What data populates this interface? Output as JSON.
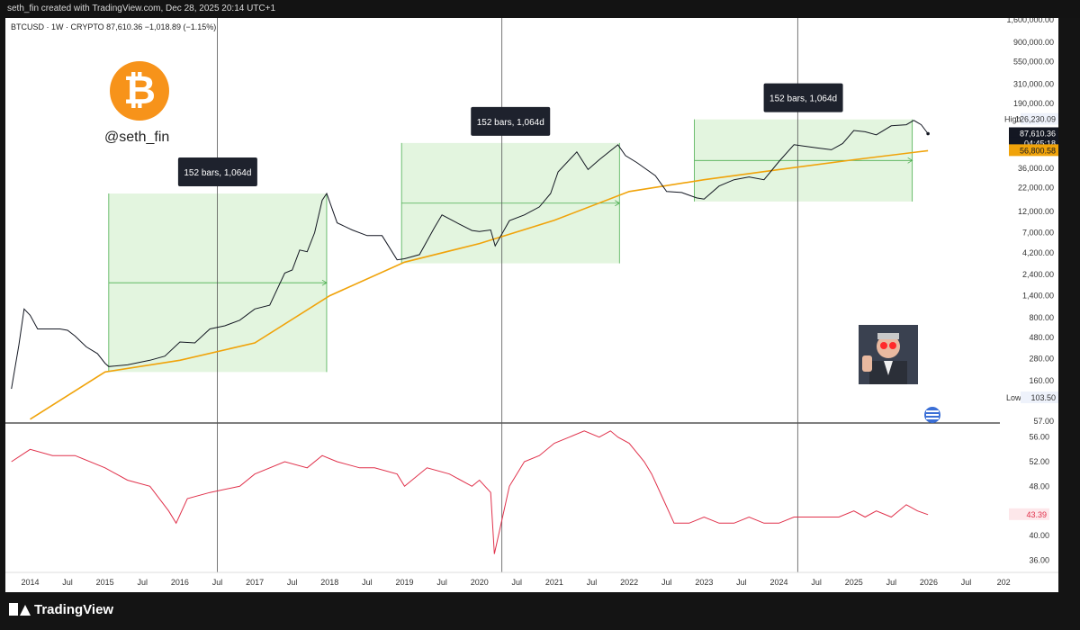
{
  "header": {
    "text": "seth_fin created with TradingView.com, Dec 28, 2025 20:14 UTC+1"
  },
  "legend": {
    "symbol": "BTCUSD · 1W · CRYPTO",
    "price": "87,610.36",
    "change": "−1,018.89 (−1.15%)"
  },
  "logo": {
    "handle": "@seth_fin",
    "symbol": "₿"
  },
  "branding": {
    "name": "TradingView"
  },
  "boxes": [
    {
      "label": "152 bars, 1,064d"
    },
    {
      "label": "152 bars, 1,064d"
    },
    {
      "label": "152 bars, 1,064d"
    }
  ],
  "price_axis": {
    "ticks": [
      "1,600,000.00",
      "900,000.00",
      "550,000.00",
      "310,000.00",
      "190,000.00",
      "36,000.00",
      "22,000.00",
      "12,000.00",
      "7,000.00",
      "4,200.00",
      "2,400.00",
      "1,400.00",
      "800.00",
      "480.00",
      "280.00",
      "160.00",
      "57.00"
    ],
    "high_label": "High",
    "high_value": "126,230.09",
    "low_label": "Low",
    "low_value": "103.50",
    "last_price": "87,610.36",
    "countdown": "04:45:18",
    "ma_value": "56,800.58"
  },
  "indicator_axis": {
    "ticks": [
      "56.00",
      "52.00",
      "48.00",
      "40.00",
      "36.00"
    ],
    "last_value": "43.39"
  },
  "time_axis": {
    "ticks": [
      "2014",
      "Jul",
      "2015",
      "Jul",
      "2016",
      "Jul",
      "2017",
      "Jul",
      "2018",
      "Jul",
      "2019",
      "Jul",
      "2020",
      "Jul",
      "2021",
      "Jul",
      "2022",
      "Jul",
      "2023",
      "Jul",
      "2024",
      "Jul",
      "2025",
      "Jul",
      "2026",
      "Jul",
      "202"
    ]
  },
  "colors": {
    "price": "#131722",
    "ma": "#f0a30a",
    "rsi": "#e0314b",
    "box_fill": "#e3f5df",
    "box_line": "#4caf50",
    "btc_orange": "#f7931a"
  },
  "chart_data": [
    {
      "type": "line",
      "title": "BTCUSD · 1W · CRYPTO",
      "scale": "log",
      "series": [
        {
          "name": "BTCUSD",
          "x": [
            2013.75,
            2013.85,
            2013.92,
            2014.0,
            2014.1,
            2014.2,
            2014.3,
            2014.4,
            2014.5,
            2014.6,
            2014.75,
            2014.9,
            2015.0,
            2015.05,
            2015.3,
            2015.6,
            2015.8,
            2016.0,
            2016.2,
            2016.4,
            2016.6,
            2016.8,
            2017.0,
            2017.2,
            2017.4,
            2017.5,
            2017.6,
            2017.7,
            2017.8,
            2017.9,
            2017.96,
            2018.1,
            2018.3,
            2018.5,
            2018.7,
            2018.9,
            2019.0,
            2019.2,
            2019.4,
            2019.5,
            2019.7,
            2019.9,
            2020.0,
            2020.15,
            2020.21,
            2020.4,
            2020.6,
            2020.8,
            2020.95,
            2021.05,
            2021.3,
            2021.45,
            2021.6,
            2021.85,
            2021.95,
            2022.1,
            2022.35,
            2022.5,
            2022.7,
            2022.9,
            2023.0,
            2023.2,
            2023.4,
            2023.6,
            2023.8,
            2024.0,
            2024.2,
            2024.5,
            2024.7,
            2024.85,
            2025.0,
            2025.15,
            2025.3,
            2025.5,
            2025.7,
            2025.8,
            2025.9,
            2025.99
          ],
          "y": [
            130,
            400,
            1000,
            850,
            600,
            600,
            600,
            600,
            580,
            500,
            380,
            320,
            250,
            230,
            240,
            270,
            300,
            430,
            420,
            600,
            650,
            750,
            1000,
            1100,
            2500,
            2700,
            4500,
            4300,
            7000,
            16000,
            19000,
            9000,
            7500,
            6500,
            6500,
            3500,
            3600,
            4000,
            8000,
            11000,
            9000,
            7400,
            7200,
            7500,
            5000,
            9500,
            11000,
            13500,
            19000,
            33000,
            55000,
            35000,
            45000,
            66000,
            50000,
            42000,
            30000,
            20000,
            19500,
            17000,
            16500,
            23000,
            27000,
            29000,
            27000,
            43000,
            66000,
            61000,
            58000,
            68000,
            95000,
            92000,
            85000,
            107000,
            110000,
            123000,
            110000,
            87610
          ]
        },
        {
          "name": "",
          "x": [
            2014.0,
            2015.0,
            2016.0,
            2017.0,
            2018.0,
            2019.0,
            2020.0,
            2021.0,
            2022.0,
            2023.0,
            2024.0,
            2025.0,
            2025.99
          ],
          "y": [
            60,
            200,
            270,
            420,
            1400,
            3300,
            5300,
            9600,
            20000,
            27000,
            35000,
            45000,
            56800
          ]
        }
      ],
      "ranges": [
        {
          "label": "152 bars, 1,064d",
          "x_start": 2015.05,
          "x_end": 2017.96,
          "y_low": 200,
          "y_high": 19000
        },
        {
          "label": "152 bars, 1,064d",
          "x_start": 2018.96,
          "x_end": 2021.87,
          "y_low": 3200,
          "y_high": 69000
        },
        {
          "label": "152 bars, 1,064d",
          "x_start": 2022.87,
          "x_end": 2025.78,
          "y_low": 15500,
          "y_high": 126000
        }
      ],
      "xlim": [
        2013.67,
        2026.95
      ],
      "ylim": [
        57,
        1600000
      ],
      "high": 126230.09,
      "low": 103.5
    },
    {
      "type": "line",
      "title": "",
      "series": [
        {
          "name": "",
          "x": [
            2013.75,
            2014.0,
            2014.3,
            2014.6,
            2015.0,
            2015.3,
            2015.6,
            2015.85,
            2015.95,
            2016.1,
            2016.4,
            2016.8,
            2017.0,
            2017.4,
            2017.7,
            2017.9,
            2018.1,
            2018.4,
            2018.6,
            2018.9,
            2019.0,
            2019.3,
            2019.6,
            2019.9,
            2020.0,
            2020.15,
            2020.2,
            2020.4,
            2020.6,
            2020.8,
            2021.0,
            2021.2,
            2021.4,
            2021.6,
            2021.75,
            2021.85,
            2022.0,
            2022.2,
            2022.3,
            2022.45,
            2022.6,
            2022.8,
            2023.0,
            2023.2,
            2023.4,
            2023.6,
            2023.8,
            2024.0,
            2024.2,
            2024.4,
            2024.6,
            2024.8,
            2025.0,
            2025.15,
            2025.3,
            2025.5,
            2025.7,
            2025.85,
            2025.99
          ],
          "y": [
            52,
            54,
            53,
            53,
            51,
            49,
            48,
            44,
            42,
            46,
            47,
            48,
            50,
            52,
            51,
            53,
            52,
            51,
            51,
            50,
            48,
            51,
            50,
            48,
            49,
            47,
            37,
            48,
            52,
            53,
            55,
            56,
            57,
            56,
            57,
            56,
            55,
            52,
            50,
            46,
            42,
            42,
            43,
            42,
            42,
            43,
            42,
            42,
            43,
            43,
            43,
            43,
            44,
            43,
            44,
            43,
            45,
            44,
            43.39
          ]
        }
      ],
      "xlim": [
        2013.67,
        2026.95
      ],
      "ylim": [
        34,
        58
      ]
    }
  ]
}
